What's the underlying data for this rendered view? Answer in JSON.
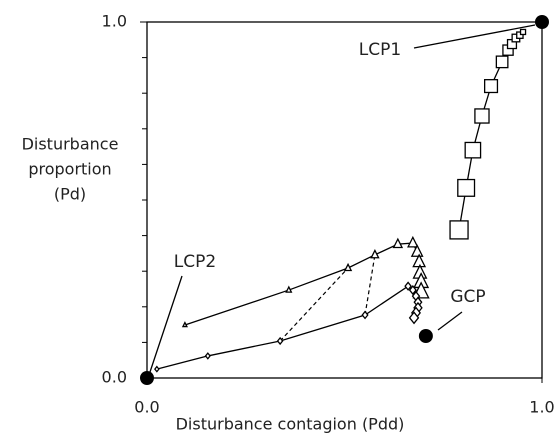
{
  "chart_data": {
    "type": "scatter",
    "xlabel": "Disturbance contagion (Pdd)",
    "ylabel": [
      "Disturbance",
      "proportion",
      "(Pd)"
    ],
    "xlim": [
      0,
      1
    ],
    "ylim": [
      0,
      1
    ],
    "xticks": [
      {
        "value": 0,
        "label": "0.0"
      },
      {
        "value": 1,
        "label": "1.0"
      }
    ],
    "yticks": [
      {
        "value": 0,
        "label": "0.0"
      },
      {
        "value": 1,
        "label": "1.0"
      }
    ],
    "yminor_ticks": [
      0.1,
      0.2,
      0.3,
      0.4,
      0.5,
      0.6,
      0.7,
      0.8,
      0.9
    ],
    "series": [
      {
        "marker": "square",
        "color": "#000",
        "x": [
          0.79,
          0.808,
          0.825,
          0.848,
          0.871,
          0.899,
          0.914,
          0.924,
          0.934,
          0.944,
          0.952
        ],
        "values": [
          0.416,
          0.534,
          0.64,
          0.736,
          0.82,
          0.888,
          0.921,
          0.938,
          0.955,
          0.963,
          0.972
        ]
      },
      {
        "marker": "triangle",
        "color": "#000",
        "x": [
          0.096,
          0.359,
          0.509,
          0.577,
          0.635,
          0.673,
          0.684,
          0.689,
          0.691,
          0.694,
          0.694
        ],
        "values": [
          0.149,
          0.247,
          0.309,
          0.346,
          0.376,
          0.379,
          0.354,
          0.326,
          0.295,
          0.27,
          0.242
        ]
      },
      {
        "marker": "diamond",
        "color": "#000",
        "x": [
          0.025,
          0.154,
          0.337,
          0.552,
          0.661,
          0.673,
          0.681,
          0.686,
          0.686,
          0.681,
          0.676
        ],
        "values": [
          0.025,
          0.062,
          0.104,
          0.177,
          0.258,
          0.247,
          0.23,
          0.213,
          0.197,
          0.183,
          0.169
        ]
      }
    ],
    "points": {
      "x": [
        0,
        1,
        0.706
      ],
      "values": [
        0,
        1,
        0.118
      ]
    },
    "annotations": [
      "LCP1",
      "LCP2",
      "GCP"
    ]
  }
}
